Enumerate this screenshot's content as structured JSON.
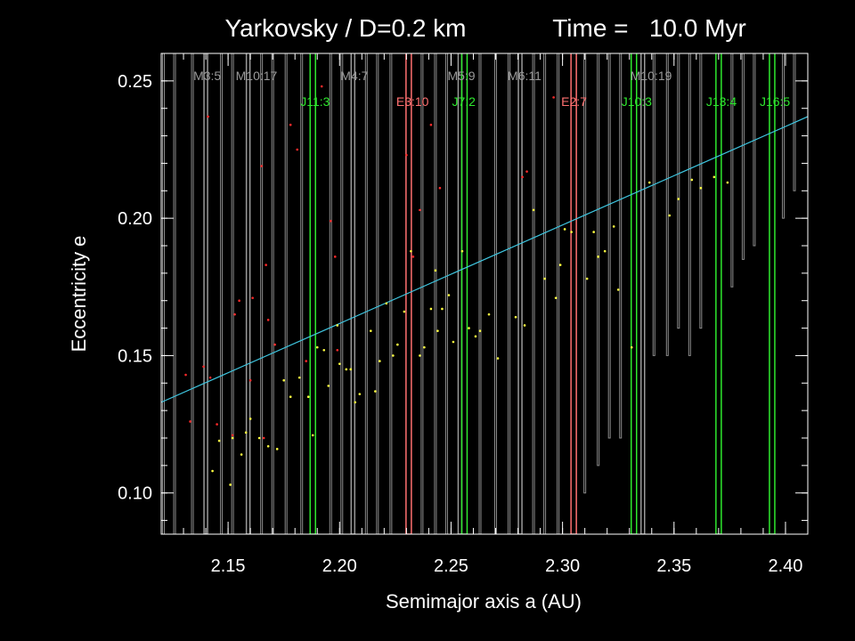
{
  "chart_data": {
    "type": "scatter",
    "title_left": "Yarkovsky / D=0.2 km",
    "title_right": "Time =   10.0 Myr",
    "xlabel": "Semimajor axis a (AU)",
    "ylabel": "Eccentricity e",
    "xlim": [
      2.12,
      2.41
    ],
    "ylim": [
      0.085,
      0.26
    ],
    "xticks": [
      2.15,
      2.2,
      2.25,
      2.3,
      2.35,
      2.4
    ],
    "xtick_labels": [
      "2.15",
      "2.20",
      "2.25",
      "2.30",
      "2.35",
      "2.40"
    ],
    "yticks": [
      0.1,
      0.15,
      0.2,
      0.25
    ],
    "ytick_labels": [
      "0.10",
      "0.15",
      "0.20",
      "0.25"
    ],
    "colors": {
      "background": "#000000",
      "axes": "#ffffff",
      "mars_resonance": "#9a9a9a",
      "earth_resonance": "#ff7070",
      "jupiter_resonance": "#2ee82e",
      "trend_line": "#3fc6e0",
      "red_points": "#ff2a2a",
      "yellow_points": "#ffff40"
    },
    "trend_line": {
      "x": [
        2.12,
        2.41
      ],
      "y": [
        0.133,
        0.237
      ]
    },
    "resonances": [
      {
        "label": "M3:5",
        "a": 2.14,
        "family": "mars",
        "label_row": 1
      },
      {
        "label": "M10:17",
        "a": 2.159,
        "family": "mars",
        "label_row": 1
      },
      {
        "label": "M4:7",
        "a": 2.206,
        "family": "mars",
        "label_row": 1
      },
      {
        "label": "M5:9",
        "a": 2.254,
        "family": "mars",
        "label_row": 1
      },
      {
        "label": "M6:11",
        "a": 2.281,
        "family": "mars",
        "label_row": 1
      },
      {
        "label": "M10:19",
        "a": 2.336,
        "family": "mars",
        "label_row": 1
      },
      {
        "label": "E3:10",
        "a": 2.231,
        "family": "earth",
        "label_row": 2
      },
      {
        "label": "E2:7",
        "a": 2.305,
        "family": "earth",
        "label_row": 2
      },
      {
        "label": "J11:3",
        "a": 2.188,
        "family": "jupiter",
        "label_row": 2
      },
      {
        "label": "J7:2",
        "a": 2.256,
        "family": "jupiter",
        "label_row": 2
      },
      {
        "label": "J10:3",
        "a": 2.332,
        "family": "jupiter",
        "label_row": 2
      },
      {
        "label": "J13:4",
        "a": 2.37,
        "family": "jupiter",
        "label_row": 2
      },
      {
        "label": "J16:5",
        "a": 2.394,
        "family": "jupiter",
        "label_row": 2
      }
    ],
    "thin_lines": [
      {
        "a": 2.121,
        "e_min": 0.085
      },
      {
        "a": 2.126,
        "e_min": 0.085
      },
      {
        "a": 2.134,
        "e_min": 0.085
      },
      {
        "a": 2.147,
        "e_min": 0.085
      },
      {
        "a": 2.152,
        "e_min": 0.085
      },
      {
        "a": 2.165,
        "e_min": 0.085
      },
      {
        "a": 2.17,
        "e_min": 0.085
      },
      {
        "a": 2.176,
        "e_min": 0.085
      },
      {
        "a": 2.183,
        "e_min": 0.085
      },
      {
        "a": 2.196,
        "e_min": 0.085
      },
      {
        "a": 2.201,
        "e_min": 0.085
      },
      {
        "a": 2.212,
        "e_min": 0.085
      },
      {
        "a": 2.217,
        "e_min": 0.085
      },
      {
        "a": 2.223,
        "e_min": 0.085
      },
      {
        "a": 2.237,
        "e_min": 0.085
      },
      {
        "a": 2.243,
        "e_min": 0.085
      },
      {
        "a": 2.248,
        "e_min": 0.085
      },
      {
        "a": 2.263,
        "e_min": 0.085
      },
      {
        "a": 2.27,
        "e_min": 0.085
      },
      {
        "a": 2.276,
        "e_min": 0.085
      },
      {
        "a": 2.287,
        "e_min": 0.085
      },
      {
        "a": 2.292,
        "e_min": 0.085
      },
      {
        "a": 2.298,
        "e_min": 0.085
      },
      {
        "a": 2.31,
        "e_min": 0.1
      },
      {
        "a": 2.316,
        "e_min": 0.11
      },
      {
        "a": 2.321,
        "e_min": 0.12
      },
      {
        "a": 2.326,
        "e_min": 0.12
      },
      {
        "a": 2.341,
        "e_min": 0.15
      },
      {
        "a": 2.347,
        "e_min": 0.15
      },
      {
        "a": 2.352,
        "e_min": 0.16
      },
      {
        "a": 2.357,
        "e_min": 0.15
      },
      {
        "a": 2.362,
        "e_min": 0.16
      },
      {
        "a": 2.376,
        "e_min": 0.175
      },
      {
        "a": 2.381,
        "e_min": 0.185
      },
      {
        "a": 2.386,
        "e_min": 0.19
      },
      {
        "a": 2.399,
        "e_min": 0.2
      },
      {
        "a": 2.404,
        "e_min": 0.21
      }
    ],
    "red_points": [
      [
        2.131,
        0.143
      ],
      [
        2.133,
        0.126
      ],
      [
        2.139,
        0.146
      ],
      [
        2.141,
        0.237
      ],
      [
        2.142,
        0.142
      ],
      [
        2.145,
        0.125
      ],
      [
        2.152,
        0.121
      ],
      [
        2.153,
        0.165
      ],
      [
        2.155,
        0.17
      ],
      [
        2.16,
        0.141
      ],
      [
        2.161,
        0.171
      ],
      [
        2.165,
        0.219
      ],
      [
        2.166,
        0.12
      ],
      [
        2.167,
        0.183
      ],
      [
        2.168,
        0.163
      ],
      [
        2.171,
        0.154
      ],
      [
        2.178,
        0.234
      ],
      [
        2.181,
        0.225
      ],
      [
        2.185,
        0.148
      ],
      [
        2.192,
        0.248
      ],
      [
        2.196,
        0.199
      ],
      [
        2.198,
        0.186
      ],
      [
        2.199,
        0.152
      ],
      [
        2.23,
        0.223
      ],
      [
        2.233,
        0.186
      ],
      [
        2.236,
        0.203
      ],
      [
        2.241,
        0.234
      ],
      [
        2.245,
        0.211
      ],
      [
        2.282,
        0.215
      ],
      [
        2.284,
        0.217
      ],
      [
        2.296,
        0.244
      ]
    ],
    "yellow_points": [
      [
        2.143,
        0.108
      ],
      [
        2.146,
        0.119
      ],
      [
        2.151,
        0.103
      ],
      [
        2.152,
        0.12
      ],
      [
        2.156,
        0.114
      ],
      [
        2.158,
        0.122
      ],
      [
        2.16,
        0.127
      ],
      [
        2.164,
        0.12
      ],
      [
        2.168,
        0.117
      ],
      [
        2.172,
        0.116
      ],
      [
        2.175,
        0.141
      ],
      [
        2.178,
        0.135
      ],
      [
        2.182,
        0.142
      ],
      [
        2.186,
        0.135
      ],
      [
        2.188,
        0.121
      ],
      [
        2.19,
        0.153
      ],
      [
        2.193,
        0.152
      ],
      [
        2.195,
        0.139
      ],
      [
        2.199,
        0.161
      ],
      [
        2.2,
        0.147
      ],
      [
        2.203,
        0.145
      ],
      [
        2.205,
        0.145
      ],
      [
        2.207,
        0.133
      ],
      [
        2.209,
        0.136
      ],
      [
        2.214,
        0.159
      ],
      [
        2.216,
        0.137
      ],
      [
        2.218,
        0.148
      ],
      [
        2.221,
        0.169
      ],
      [
        2.224,
        0.15
      ],
      [
        2.226,
        0.154
      ],
      [
        2.229,
        0.166
      ],
      [
        2.232,
        0.188
      ],
      [
        2.236,
        0.15
      ],
      [
        2.238,
        0.153
      ],
      [
        2.241,
        0.167
      ],
      [
        2.243,
        0.181
      ],
      [
        2.244,
        0.159
      ],
      [
        2.246,
        0.167
      ],
      [
        2.249,
        0.172
      ],
      [
        2.251,
        0.155
      ],
      [
        2.255,
        0.188
      ],
      [
        2.258,
        0.16
      ],
      [
        2.261,
        0.157
      ],
      [
        2.263,
        0.159
      ],
      [
        2.267,
        0.165
      ],
      [
        2.271,
        0.149
      ],
      [
        2.279,
        0.164
      ],
      [
        2.283,
        0.161
      ],
      [
        2.287,
        0.203
      ],
      [
        2.292,
        0.178
      ],
      [
        2.297,
        0.171
      ],
      [
        2.299,
        0.183
      ],
      [
        2.301,
        0.196
      ],
      [
        2.304,
        0.195
      ],
      [
        2.311,
        0.178
      ],
      [
        2.314,
        0.195
      ],
      [
        2.316,
        0.186
      ],
      [
        2.319,
        0.188
      ],
      [
        2.323,
        0.197
      ],
      [
        2.325,
        0.174
      ],
      [
        2.331,
        0.153
      ],
      [
        2.339,
        0.213
      ],
      [
        2.348,
        0.201
      ],
      [
        2.352,
        0.207
      ],
      [
        2.358,
        0.214
      ],
      [
        2.362,
        0.211
      ],
      [
        2.368,
        0.215
      ],
      [
        2.374,
        0.213
      ]
    ]
  }
}
